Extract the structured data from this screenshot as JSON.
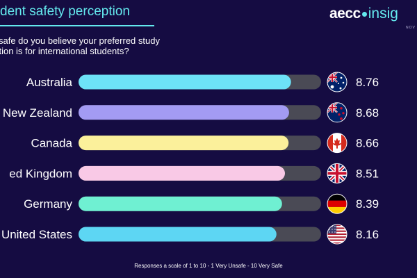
{
  "header": {
    "title": "dent safety perception",
    "brand_name": "aecc",
    "brand_suffix": "insig",
    "brand_sub": "NOV"
  },
  "question": {
    "line1": "safe do you believe your preferred study",
    "line2": "nation is for international students?"
  },
  "footnote": "Responses a scale of 1 to 10 - 1 Very Unsafe - 10 Very Safe",
  "colors": {
    "background": "#150c42",
    "accent": "#64e9ee",
    "track": "#4a4a55"
  },
  "chart_data": {
    "type": "bar",
    "orientation": "horizontal",
    "categories": [
      "Australia",
      "New Zealand",
      "Canada",
      "ed Kingdom",
      "Germany",
      "United States"
    ],
    "values": [
      8.76,
      8.68,
      8.66,
      8.51,
      8.39,
      8.16
    ],
    "value_labels": [
      "8.76",
      "8.68",
      "8.66",
      "8.51",
      "8.39",
      "8.16"
    ],
    "bar_colors": [
      "#6de2f7",
      "#a39bf3",
      "#fbf09b",
      "#f9c9e6",
      "#6ff0d2",
      "#5dd6f3"
    ],
    "flags": [
      "australia-flag-icon",
      "new-zealand-flag-icon",
      "canada-flag-icon",
      "united-kingdom-flag-icon",
      "germany-flag-icon",
      "united-states-flag-icon"
    ],
    "xlim": [
      0,
      10
    ],
    "grid": false,
    "legend": "none"
  }
}
